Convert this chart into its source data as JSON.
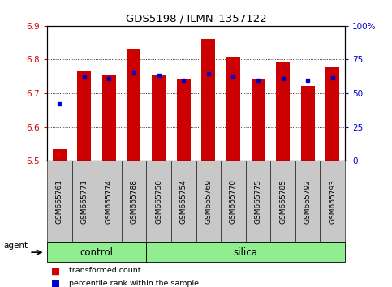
{
  "title": "GDS5198 / ILMN_1357122",
  "samples": [
    "GSM665761",
    "GSM665771",
    "GSM665774",
    "GSM665788",
    "GSM665750",
    "GSM665754",
    "GSM665769",
    "GSM665770",
    "GSM665775",
    "GSM665785",
    "GSM665792",
    "GSM665793"
  ],
  "n_control": 4,
  "n_silica": 8,
  "red_values": [
    6.535,
    6.765,
    6.755,
    6.832,
    6.755,
    6.742,
    6.862,
    6.808,
    6.742,
    6.793,
    6.722,
    6.778
  ],
  "blue_values": [
    6.668,
    6.748,
    6.743,
    6.762,
    6.752,
    6.738,
    6.758,
    6.75,
    6.738,
    6.743,
    6.738,
    6.745
  ],
  "ymin": 6.5,
  "ymax": 6.9,
  "y2min": 0,
  "y2max": 100,
  "yticks": [
    6.5,
    6.6,
    6.7,
    6.8,
    6.9
  ],
  "y2ticks": [
    0,
    25,
    50,
    75,
    100
  ],
  "y2ticklabels": [
    "0",
    "25",
    "50",
    "75",
    "100%"
  ],
  "bar_color": "#cc0000",
  "dot_color": "#0000cc",
  "group_color": "#90ee90",
  "bar_width": 0.55,
  "background_color": "#ffffff",
  "tick_area_color": "#c8c8c8",
  "legend_items": [
    "transformed count",
    "percentile rank within the sample"
  ],
  "agent_label": "agent",
  "control_label": "control",
  "silica_label": "silica"
}
